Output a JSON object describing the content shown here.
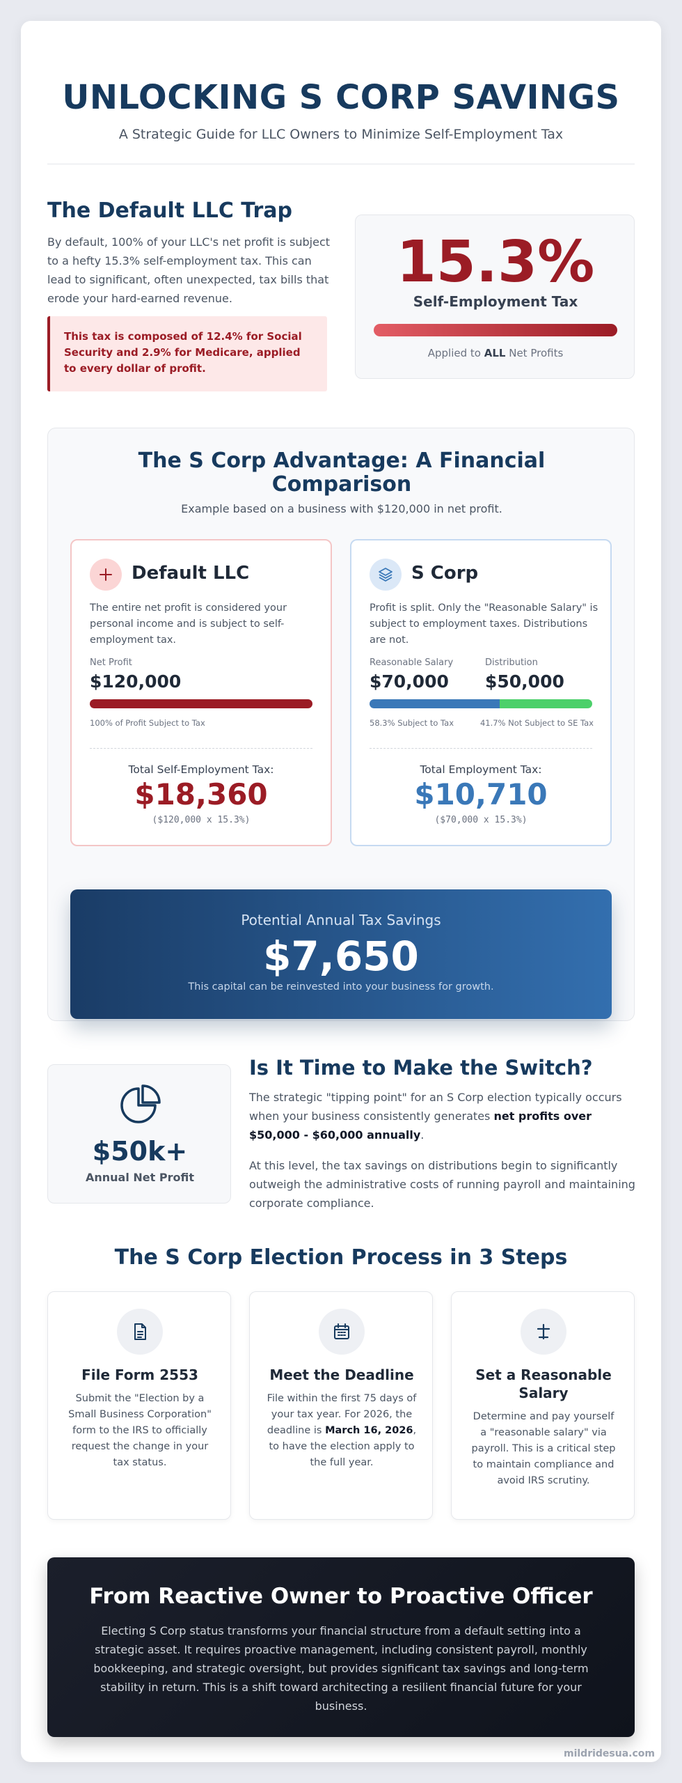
{
  "header": {
    "title": "UNLOCKING S CORP SAVINGS",
    "subtitle": "A Strategic Guide for LLC Owners to Minimize Self-Employment Tax"
  },
  "trap": {
    "heading": "The Default LLC Trap",
    "body": "By default, 100% of your LLC's net profit is subject to a hefty 15.3% self-employment tax. This can lead to significant, often unexpected, tax bills that erode your hard-earned revenue.",
    "note": "This tax is composed of 12.4% for Social Security and 2.9% for Medicare, applied to every dollar of profit.",
    "stat_value": "15.3%",
    "stat_label": "Self-Employment Tax",
    "stat_foot_pre": "Applied to",
    "stat_foot_bold": "ALL",
    "stat_foot_post": "Net Profits"
  },
  "comparison": {
    "title": "The S Corp Advantage: A Financial Comparison",
    "subtitle": "Example based on a business with $120,000 in net profit.",
    "llc": {
      "name": "Default LLC",
      "icon": "plus-icon",
      "description": "The entire net profit is considered your personal income and is subject to self-employment tax.",
      "profit_label": "Net Profit",
      "profit_value": "$120,000",
      "taxed_fraction": 1.0,
      "bar_note": "100% of Profit Subject to Tax",
      "total_label": "Total Self-Employment Tax:",
      "total_value": "$18,360",
      "total_calc": "($120,000 x 15.3%)"
    },
    "scorp": {
      "name": "S Corp",
      "icon": "layers-icon",
      "description": "Profit is split. Only the \"Reasonable Salary\" is subject to employment taxes. Distributions are not.",
      "salary_label": "Reasonable Salary",
      "salary_value": "$70,000",
      "dist_label": "Distribution",
      "dist_value": "$50,000",
      "salary_fraction": 0.583,
      "salary_note": "58.3% Subject to Tax",
      "dist_note": "41.7% Not Subject to SE Tax",
      "total_label": "Total Employment Tax:",
      "total_value": "$10,710",
      "total_calc": "($70,000 x 15.3%)"
    },
    "savings": {
      "label": "Potential Annual Tax Savings",
      "value": "$7,650",
      "note": "This capital can be reinvested into your business for growth."
    }
  },
  "switch": {
    "stat_value": "$50k+",
    "stat_label": "Annual Net Profit",
    "icon": "pie-chart-icon",
    "heading": "Is It Time to Make the Switch?",
    "p1_pre": "The strategic \"tipping point\" for an S Corp election typically occurs when your business consistently generates ",
    "p1_bold": "net profits over $50,000 - $60,000 annually",
    "p1_post": ".",
    "p2": "At this level, the tax savings on distributions begin to significantly outweigh the administrative costs of running payroll and maintaining corporate compliance."
  },
  "steps": {
    "title": "The S Corp Election Process in 3 Steps",
    "items": [
      {
        "icon": "document-icon",
        "title": "File Form 2553",
        "body": "Submit the \"Election by a Small Business Corporation\" form to the IRS to officially request the change in your tax status."
      },
      {
        "icon": "calendar-icon",
        "title": "Meet the Deadline",
        "body_pre": "File within the first 75 days of your tax year. For 2026, the deadline is ",
        "body_bold": "March 16, 2026",
        "body_post": ", to have the election apply to the full year."
      },
      {
        "icon": "balance-icon",
        "title": "Set a Reasonable Salary",
        "body": "Determine and pay yourself a \"reasonable salary\" via payroll. This is a critical step to maintain compliance and avoid IRS scrutiny."
      }
    ]
  },
  "final": {
    "title": "From Reactive Owner to Proactive Officer",
    "body": "Electing S Corp status transforms your financial structure from a default setting into a strategic asset. It requires proactive management, including consistent payroll, monthly bookkeeping, and strategic oversight, but provides significant tax savings and long-term stability in return. This is a shift toward architecting a resilient financial future for your business."
  },
  "brand": "mildridesua.com",
  "colors": {
    "navy": "#173a5e",
    "red": "#9b1c25",
    "blue": "#3a78b8",
    "green": "#4cd06a"
  }
}
